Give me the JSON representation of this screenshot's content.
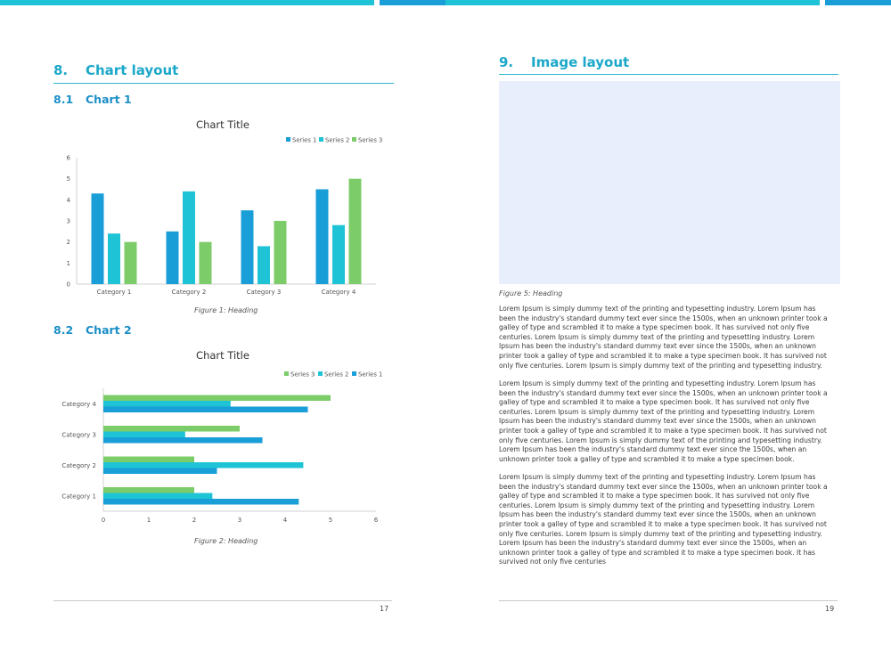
{
  "colors": {
    "series1": "#1a9ed8",
    "series2": "#1fc3d6",
    "series3": "#7ccc6a",
    "accent": "#1ba8c9",
    "placeholder": "#e8eefb"
  },
  "left_page": {
    "section_num": "8.",
    "section_title": "Chart layout",
    "sub1_num": "8.1",
    "sub1_title": "Chart 1",
    "sub2_num": "8.2",
    "sub2_title": "Chart 2",
    "caption1": "Figure 1: Heading",
    "caption2": "Figure 2: Heading",
    "page_number": "17"
  },
  "right_page": {
    "section_num": "9.",
    "section_title": "Image layout",
    "caption": "Figure 5: Heading",
    "paragraphs": [
      "Lorem Ipsum is simply dummy text of the printing and typesetting industry. Lorem Ipsum has been the industry's standard dummy text ever since the 1500s, when an unknown printer took a galley of type and scrambled it to make a type specimen book. It has survived not only five centuries. Lorem Ipsum is simply dummy text of the printing and typesetting industry. Lorem Ipsum has been the industry's standard dummy text ever since the 1500s, when an unknown printer took a galley of type and scrambled it to make a type specimen book. It has survived not only five centuries. Lorem Ipsum is simply dummy text of the printing and typesetting industry.",
      "Lorem Ipsum is simply dummy text of the printing and typesetting industry. Lorem Ipsum has been the industry's standard dummy text ever since the 1500s, when an unknown printer took a galley of type and scrambled it to make a type specimen book. It has survived not only five centuries. Lorem Ipsum is simply dummy text of the printing and typesetting industry. Lorem Ipsum has been the industry's standard dummy text ever since the 1500s, when an unknown printer took a galley of type and scrambled it to make a type specimen book. It has survived not only five centuries. Lorem Ipsum is simply dummy text of the printing and typesetting industry. Lorem Ipsum has been the industry's standard dummy text ever since the 1500s, when an unknown printer took a galley of type and scrambled it to make a type specimen book.",
      "Lorem Ipsum is simply dummy text of the printing and typesetting industry. Lorem Ipsum has been the industry's standard dummy text ever since the 1500s, when an unknown printer took a galley of type and scrambled it to make a type specimen book. It has survived not only five centuries. Lorem Ipsum is simply dummy text of the printing and typesetting industry. Lorem Ipsum has been the industry's standard dummy text ever since the 1500s, when an unknown printer took a galley of type and scrambled it to make a type specimen book. It has survived not only five centuries. Lorem Ipsum is simply dummy text of the printing and typesetting industry. Lorem Ipsum has been the industry's standard dummy text ever since the 1500s, when an unknown printer took a galley of type and scrambled it to make a type specimen book. It has survived not only five centuries"
    ],
    "page_number": "19"
  },
  "chart_data": [
    {
      "type": "bar",
      "orientation": "vertical",
      "title": "Chart Title",
      "categories": [
        "Category 1",
        "Category 2",
        "Category 3",
        "Category 4"
      ],
      "series": [
        {
          "name": "Series 1",
          "values": [
            4.3,
            2.5,
            3.5,
            4.5
          ]
        },
        {
          "name": "Series 2",
          "values": [
            2.4,
            4.4,
            1.8,
            2.8
          ]
        },
        {
          "name": "Series 3",
          "values": [
            2,
            2,
            3,
            5
          ]
        }
      ],
      "ylim": [
        0,
        6
      ],
      "yticks": [
        "0",
        "1",
        "2",
        "3",
        "4",
        "5",
        "6"
      ],
      "legend": "top-right",
      "grid": false
    },
    {
      "type": "bar",
      "orientation": "horizontal",
      "title": "Chart Title",
      "categories": [
        "Category 1",
        "Category 2",
        "Category 3",
        "Category 4"
      ],
      "series": [
        {
          "name": "Series 1",
          "values": [
            4.3,
            2.5,
            3.5,
            4.5
          ]
        },
        {
          "name": "Series 2",
          "values": [
            2.4,
            4.4,
            1.8,
            2.8
          ]
        },
        {
          "name": "Series 3",
          "values": [
            2,
            2,
            3,
            5
          ]
        }
      ],
      "legend_order": [
        "Series 3",
        "Series 2",
        "Series 1"
      ],
      "xlim": [
        0,
        6
      ],
      "xticks": [
        "0",
        "1",
        "2",
        "3",
        "4",
        "5",
        "6"
      ],
      "legend": "top-right",
      "grid": false
    }
  ]
}
